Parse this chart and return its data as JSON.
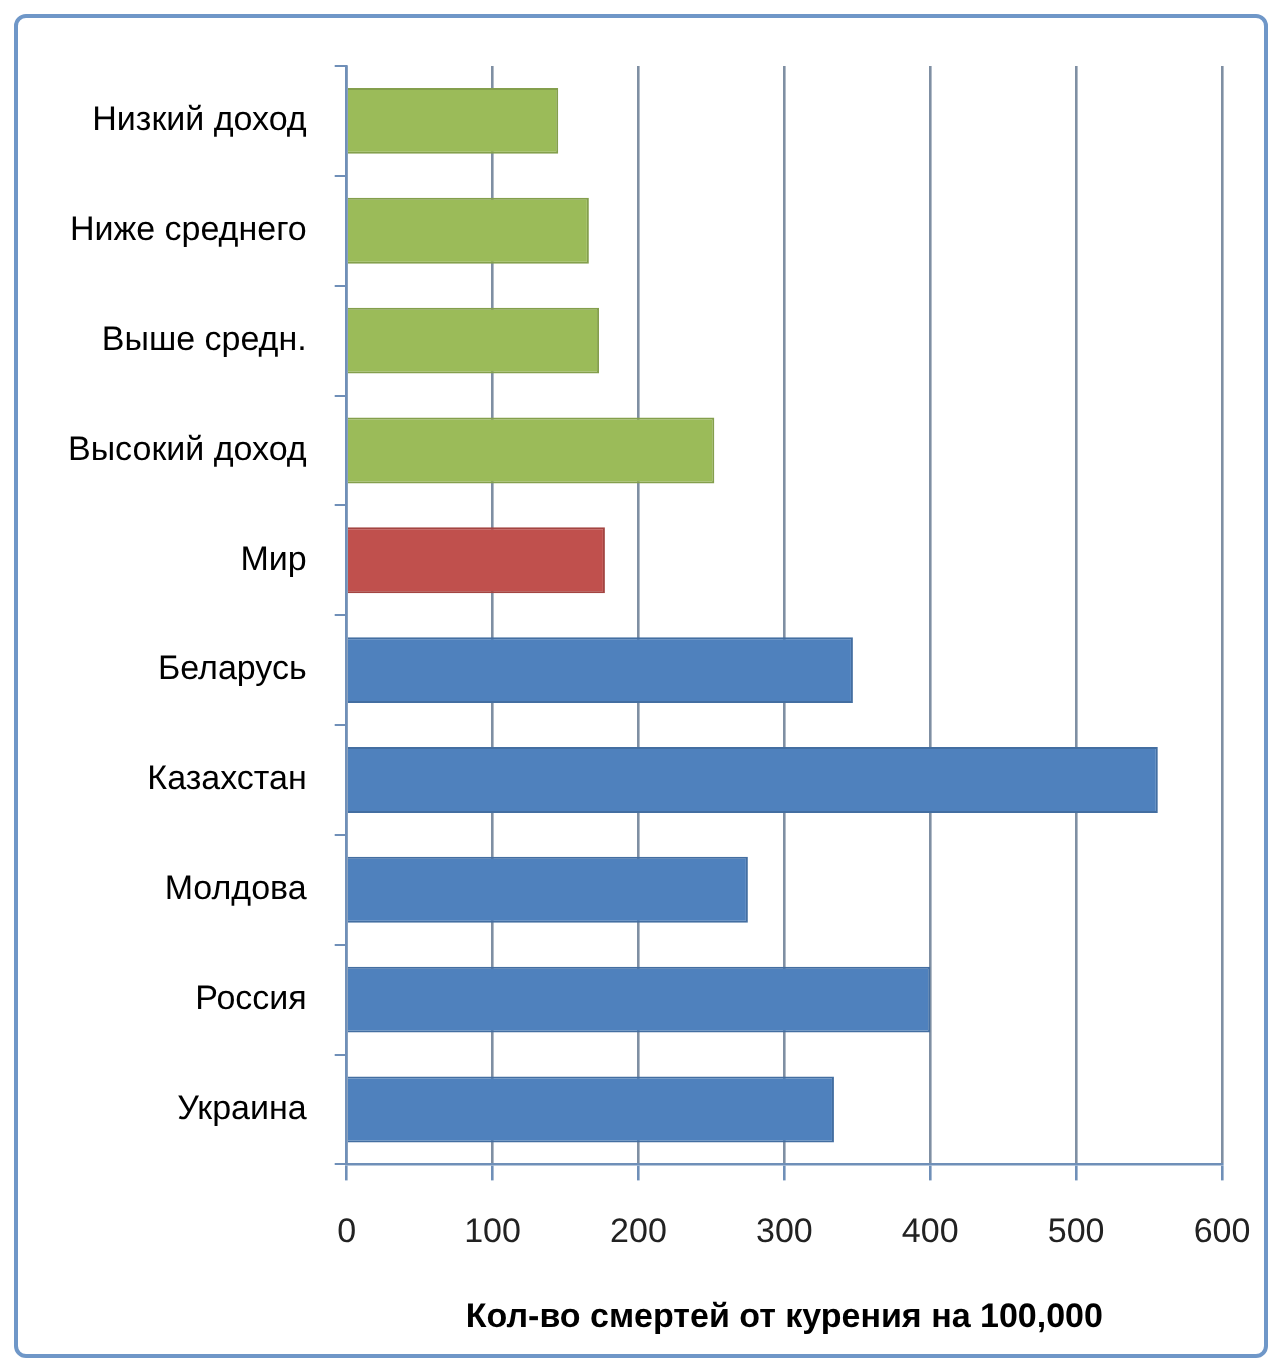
{
  "chart_data": {
    "type": "bar",
    "orientation": "horizontal",
    "categories": [
      "Низкий доход",
      "Ниже среднего",
      "Выше средн.",
      "Высокий доход",
      "Мир",
      "Беларусь",
      "Казахстан",
      "Молдова",
      "Россия",
      "Украина"
    ],
    "values": [
      145,
      166,
      173,
      252,
      177,
      347,
      556,
      275,
      400,
      334
    ],
    "colors": [
      "#9bbb59",
      "#9bbb59",
      "#9bbb59",
      "#9bbb59",
      "#c0504d",
      "#4f81bd",
      "#4f81bd",
      "#4f81bd",
      "#4f81bd",
      "#4f81bd"
    ],
    "xlabel": "Кол-во смертей от курения на 100,000",
    "xlim": [
      0,
      600
    ],
    "xticks": [
      0,
      100,
      200,
      300,
      400,
      500,
      600
    ],
    "grid": "x"
  }
}
